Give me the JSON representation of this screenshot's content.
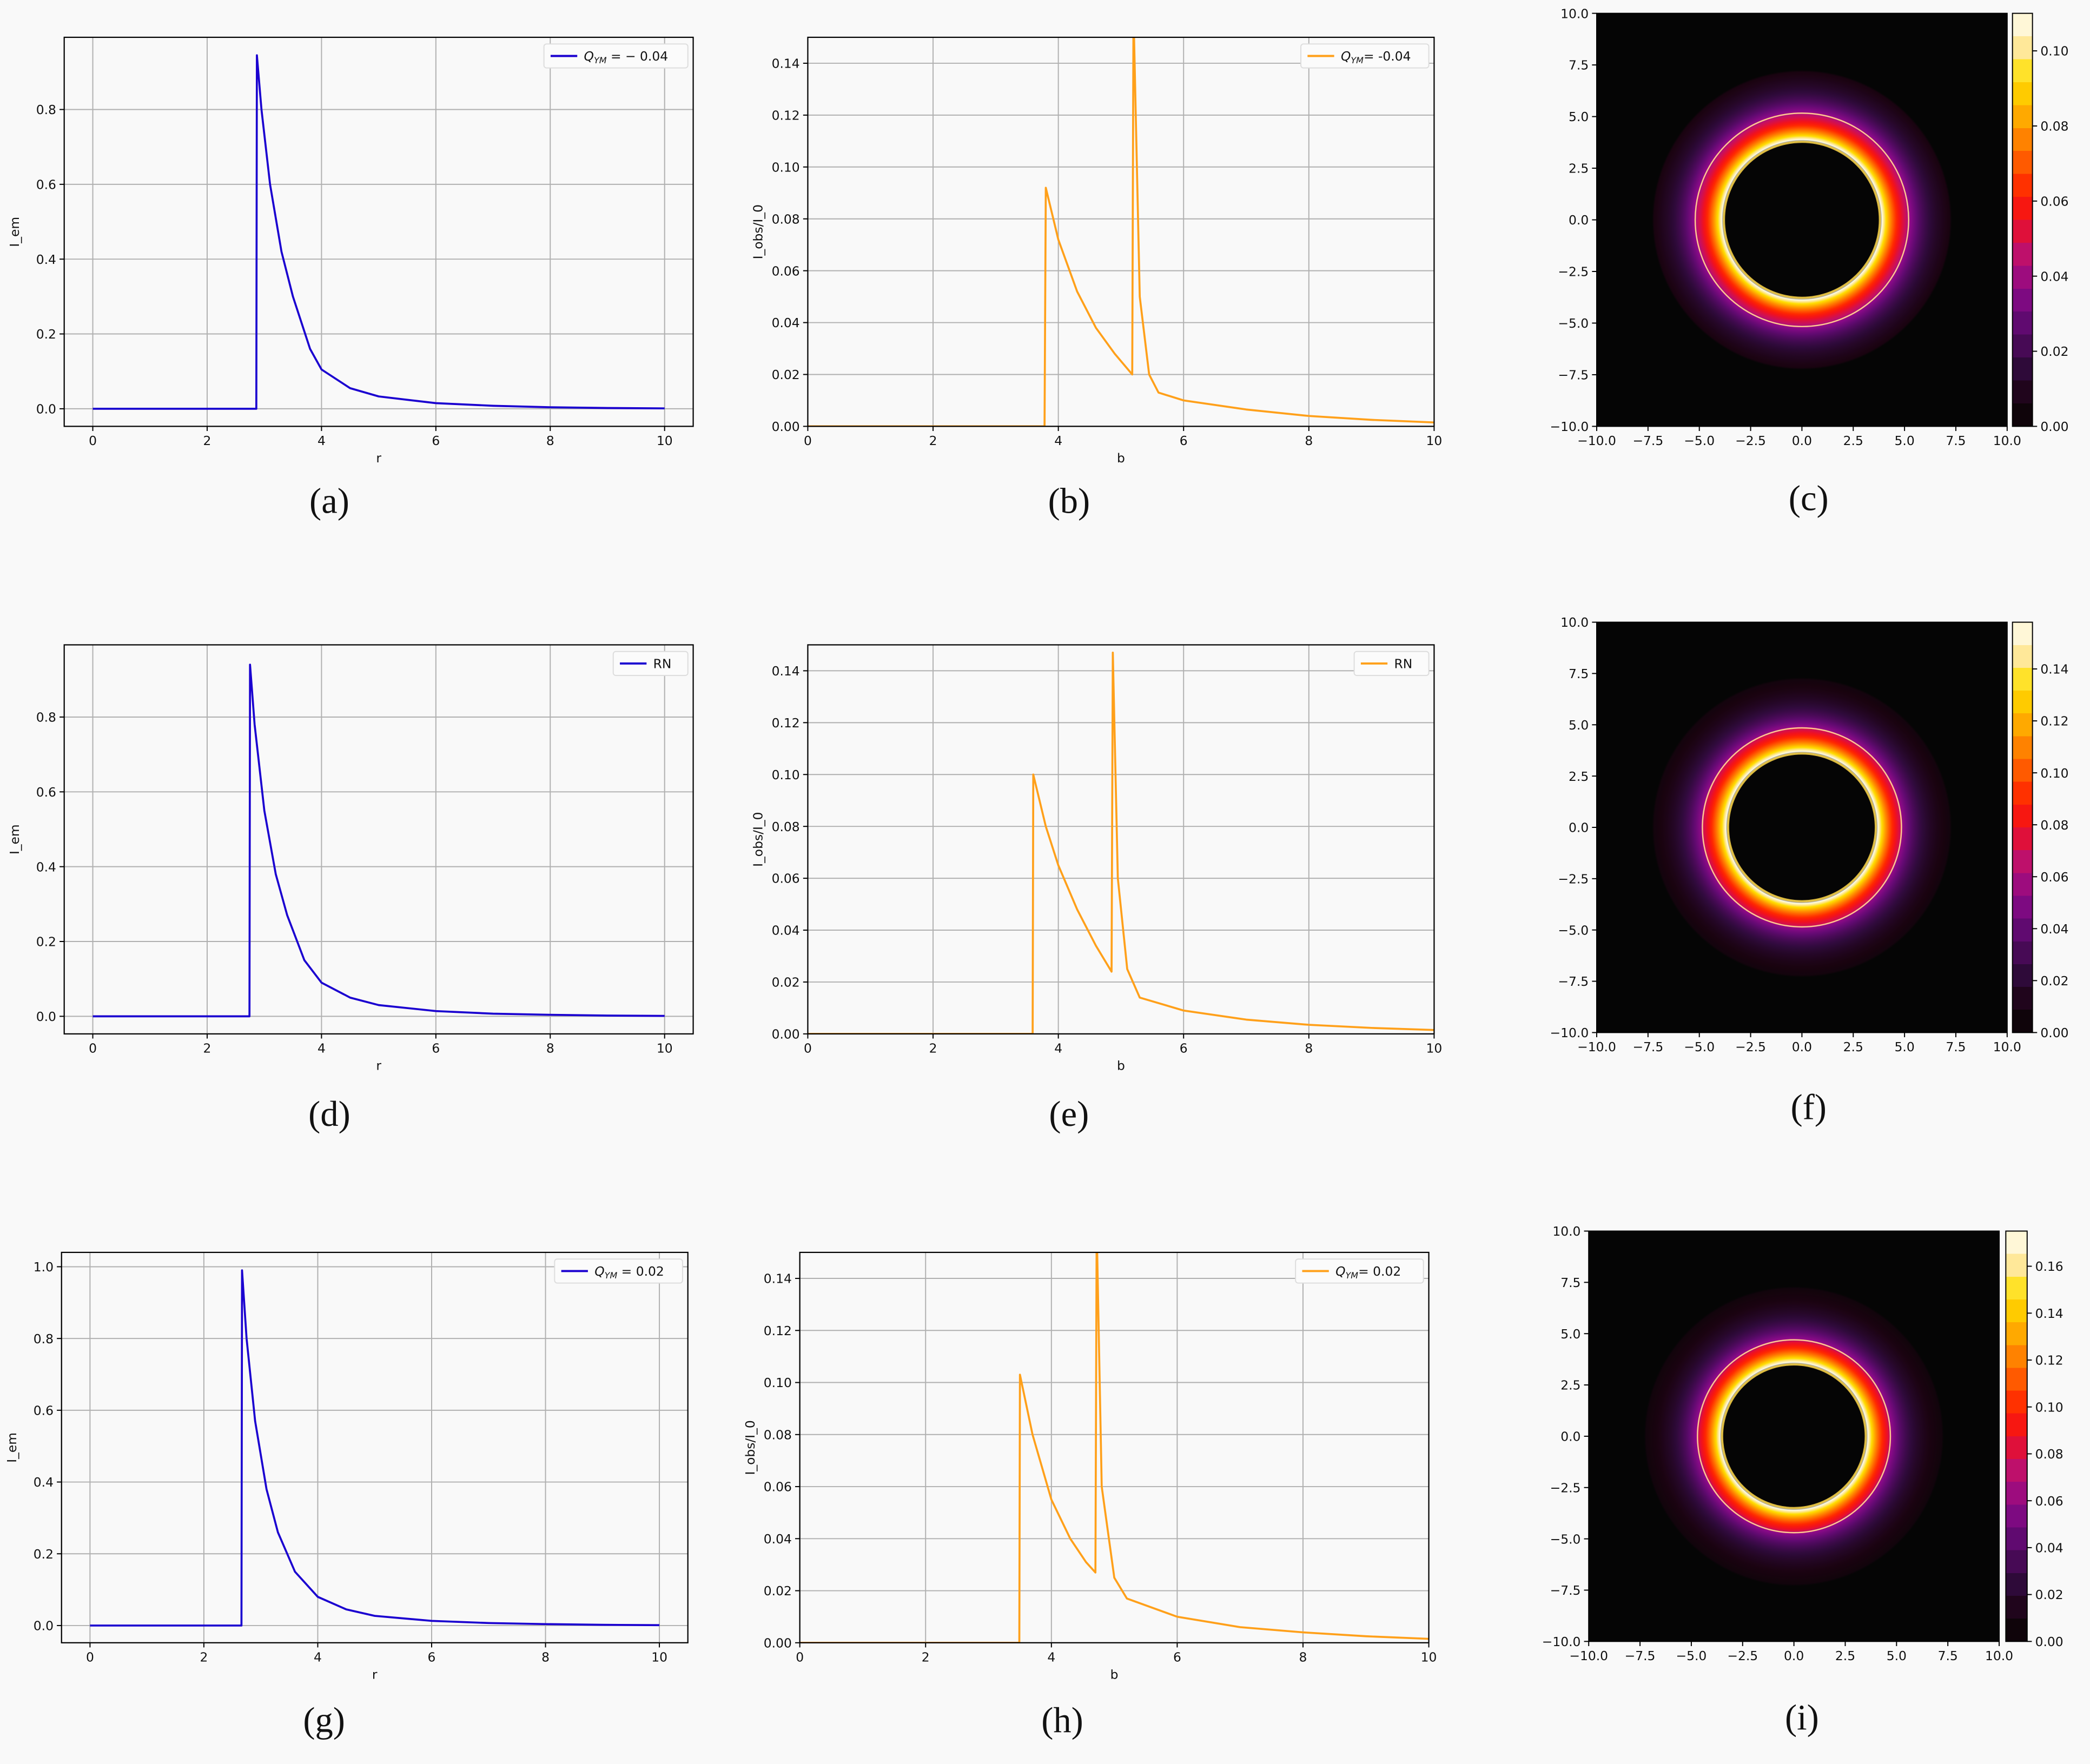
{
  "chart_data": [
    {
      "id": "a",
      "caption": "(a)",
      "type": "line",
      "xlabel": "r",
      "ylabel": "I_em",
      "xlim": [
        -0.5,
        10.5
      ],
      "ylim": [
        -0.047,
        0.993
      ],
      "xticks": [
        "0",
        "2",
        "4",
        "6",
        "8",
        "10"
      ],
      "xtick_values": [
        0,
        2,
        4,
        6,
        8,
        10
      ],
      "yticks": [
        "0.0",
        "0.2",
        "0.4",
        "0.6",
        "0.8"
      ],
      "ytick_values": [
        0,
        0.2,
        0.4,
        0.6,
        0.8
      ],
      "grid": true,
      "legend_placement": "top-right",
      "series": [
        {
          "name": "Q_YM = − 0.04",
          "legend": {
            "symbol": "Q",
            "sub": "YM",
            "text": " = − 0.04"
          },
          "color": "#1a00d0",
          "x": [
            0,
            2.86,
            2.87,
            2.95,
            3.1,
            3.3,
            3.5,
            3.8,
            4.0,
            4.5,
            5,
            6,
            7,
            8,
            9,
            10
          ],
          "y": [
            0,
            0,
            0.945,
            0.8,
            0.6,
            0.42,
            0.3,
            0.16,
            0.105,
            0.055,
            0.033,
            0.015,
            0.008,
            0.004,
            0.002,
            0.001
          ]
        }
      ]
    },
    {
      "id": "b",
      "caption": "(b)",
      "type": "line",
      "xlabel": "b",
      "ylabel": "I_obs/I_0",
      "xlim": [
        0,
        10
      ],
      "ylim": [
        0,
        0.15
      ],
      "xticks": [
        "0",
        "2",
        "4",
        "6",
        "8",
        "10"
      ],
      "xtick_values": [
        0,
        2,
        4,
        6,
        8,
        10
      ],
      "yticks": [
        "0.00",
        "0.02",
        "0.04",
        "0.06",
        "0.08",
        "0.10",
        "0.12",
        "0.14"
      ],
      "ytick_values": [
        0,
        0.02,
        0.04,
        0.06,
        0.08,
        0.1,
        0.12,
        0.14
      ],
      "grid": true,
      "legend_placement": "top-right",
      "series": [
        {
          "name": "Q_YM= -0.04",
          "legend": {
            "symbol": "Q",
            "sub": "YM",
            "text": "= -0.04"
          },
          "color": "#ffa01a",
          "x": [
            0,
            3.78,
            3.8,
            4.0,
            4.3,
            4.6,
            4.9,
            5.18,
            5.2,
            5.3,
            5.45,
            5.6,
            6,
            7,
            8,
            9,
            10
          ],
          "y": [
            0,
            0,
            0.092,
            0.072,
            0.052,
            0.038,
            0.028,
            0.02,
            0.16,
            0.05,
            0.02,
            0.013,
            0.01,
            0.0065,
            0.004,
            0.0025,
            0.0015
          ]
        }
      ]
    },
    {
      "id": "c",
      "caption": "(c)",
      "type": "heatmap",
      "xlim": [
        -10,
        10
      ],
      "ylim": [
        -10,
        10
      ],
      "xticks": [
        "−10.0",
        "−7.5",
        "−5.0",
        "−2.5",
        "0.0",
        "2.5",
        "5.0",
        "7.5",
        "10.0"
      ],
      "yticks": [
        "−10.0",
        "−7.5",
        "−5.0",
        "−2.5",
        "0.0",
        "2.5",
        "5.0",
        "7.5",
        "10.0"
      ],
      "tick_values": [
        -10,
        -7.5,
        -5,
        -2.5,
        0,
        2.5,
        5,
        7.5,
        10
      ],
      "shadow_radius": 3.8,
      "photon_ring_radius": 5.2,
      "colorbar_range": [
        0,
        0.11
      ],
      "colorbar_ticks": [
        "0.00",
        "0.02",
        "0.04",
        "0.06",
        "0.08",
        "0.10"
      ],
      "colorbar_tick_values": [
        0,
        0.02,
        0.04,
        0.06,
        0.08,
        0.1
      ],
      "colormap": "black-purple-red-yellow-white"
    },
    {
      "id": "d",
      "caption": "(d)",
      "type": "line",
      "xlabel": "r",
      "ylabel": "I_em",
      "xlim": [
        -0.5,
        10.5
      ],
      "ylim": [
        -0.047,
        0.993
      ],
      "xticks": [
        "0",
        "2",
        "4",
        "6",
        "8",
        "10"
      ],
      "xtick_values": [
        0,
        2,
        4,
        6,
        8,
        10
      ],
      "yticks": [
        "0.0",
        "0.2",
        "0.4",
        "0.6",
        "0.8"
      ],
      "ytick_values": [
        0,
        0.2,
        0.4,
        0.6,
        0.8
      ],
      "grid": true,
      "legend_placement": "top-right",
      "series": [
        {
          "name": "RN",
          "legend": {
            "symbol": "",
            "sub": "",
            "text": "RN"
          },
          "color": "#1a00d0",
          "x": [
            0,
            2.74,
            2.75,
            2.83,
            3.0,
            3.2,
            3.4,
            3.7,
            4.0,
            4.5,
            5,
            6,
            7,
            8,
            9,
            10
          ],
          "y": [
            0,
            0,
            0.94,
            0.78,
            0.55,
            0.38,
            0.27,
            0.15,
            0.09,
            0.05,
            0.03,
            0.014,
            0.007,
            0.004,
            0.002,
            0.001
          ]
        }
      ]
    },
    {
      "id": "e",
      "caption": "(e)",
      "type": "line",
      "xlabel": "b",
      "ylabel": "I_obs/I_0",
      "xlim": [
        0,
        10
      ],
      "ylim": [
        0,
        0.15
      ],
      "xticks": [
        "0",
        "2",
        "4",
        "6",
        "8",
        "10"
      ],
      "xtick_values": [
        0,
        2,
        4,
        6,
        8,
        10
      ],
      "yticks": [
        "0.00",
        "0.02",
        "0.04",
        "0.06",
        "0.08",
        "0.10",
        "0.12",
        "0.14"
      ],
      "ytick_values": [
        0,
        0.02,
        0.04,
        0.06,
        0.08,
        0.1,
        0.12,
        0.14
      ],
      "grid": true,
      "legend_placement": "top-right",
      "series": [
        {
          "name": "RN",
          "legend": {
            "symbol": "",
            "sub": "",
            "text": "RN"
          },
          "color": "#ffa01a",
          "x": [
            0,
            3.59,
            3.6,
            3.8,
            4.0,
            4.3,
            4.6,
            4.85,
            4.87,
            4.95,
            5.1,
            5.3,
            6,
            7,
            8,
            9,
            10
          ],
          "y": [
            0,
            0,
            0.1,
            0.08,
            0.065,
            0.048,
            0.034,
            0.024,
            0.147,
            0.06,
            0.025,
            0.014,
            0.009,
            0.0055,
            0.0035,
            0.0023,
            0.0015
          ]
        }
      ]
    },
    {
      "id": "f",
      "caption": "(f)",
      "type": "heatmap",
      "xlim": [
        -10,
        10
      ],
      "ylim": [
        -10,
        10
      ],
      "xticks": [
        "−10.0",
        "−7.5",
        "−5.0",
        "−2.5",
        "0.0",
        "2.5",
        "5.0",
        "7.5",
        "10.0"
      ],
      "yticks": [
        "−10.0",
        "−7.5",
        "−5.0",
        "−2.5",
        "0.0",
        "2.5",
        "5.0",
        "7.5",
        "10.0"
      ],
      "tick_values": [
        -10,
        -7.5,
        -5,
        -2.5,
        0,
        2.5,
        5,
        7.5,
        10
      ],
      "shadow_radius": 3.6,
      "photon_ring_radius": 4.85,
      "colorbar_range": [
        0,
        0.158
      ],
      "colorbar_ticks": [
        "0.00",
        "0.02",
        "0.04",
        "0.06",
        "0.08",
        "0.10",
        "0.12",
        "0.14"
      ],
      "colorbar_tick_values": [
        0,
        0.02,
        0.04,
        0.06,
        0.08,
        0.1,
        0.12,
        0.14
      ],
      "colormap": "black-purple-red-yellow-white"
    },
    {
      "id": "g",
      "caption": "(g)",
      "type": "line",
      "xlabel": "r",
      "ylabel": "I_em",
      "xlim": [
        -0.5,
        10.5
      ],
      "ylim": [
        -0.048,
        1.04
      ],
      "xticks": [
        "0",
        "2",
        "4",
        "6",
        "8",
        "10"
      ],
      "xtick_values": [
        0,
        2,
        4,
        6,
        8,
        10
      ],
      "yticks": [
        "0.0",
        "0.2",
        "0.4",
        "0.6",
        "0.8",
        "1.0"
      ],
      "ytick_values": [
        0,
        0.2,
        0.4,
        0.6,
        0.8,
        1.0
      ],
      "grid": true,
      "legend_placement": "top-right",
      "series": [
        {
          "name": "Q_YM = 0.02",
          "legend": {
            "symbol": "Q",
            "sub": "YM",
            "text": " = 0.02"
          },
          "color": "#1a00d0",
          "x": [
            0,
            2.66,
            2.67,
            2.75,
            2.9,
            3.1,
            3.3,
            3.6,
            4.0,
            4.5,
            5,
            6,
            7,
            8,
            9,
            10
          ],
          "y": [
            0,
            0,
            0.99,
            0.8,
            0.57,
            0.38,
            0.26,
            0.15,
            0.08,
            0.045,
            0.027,
            0.013,
            0.007,
            0.004,
            0.002,
            0.001
          ]
        }
      ]
    },
    {
      "id": "h",
      "caption": "(h)",
      "type": "line",
      "xlabel": "b",
      "ylabel": "I_obs/I_0",
      "xlim": [
        0,
        10
      ],
      "ylim": [
        0,
        0.15
      ],
      "xticks": [
        "0",
        "2",
        "4",
        "6",
        "8",
        "10"
      ],
      "xtick_values": [
        0,
        2,
        4,
        6,
        8,
        10
      ],
      "yticks": [
        "0.00",
        "0.02",
        "0.04",
        "0.06",
        "0.08",
        "0.10",
        "0.12",
        "0.14"
      ],
      "ytick_values": [
        0,
        0.02,
        0.04,
        0.06,
        0.08,
        0.1,
        0.12,
        0.14
      ],
      "grid": true,
      "legend_placement": "top-right",
      "series": [
        {
          "name": "Q_YM= 0.02",
          "legend": {
            "symbol": "Q",
            "sub": "YM",
            "text": "= 0.02"
          },
          "color": "#ffa01a",
          "x": [
            0,
            3.49,
            3.5,
            3.7,
            4.0,
            4.3,
            4.55,
            4.7,
            4.72,
            4.8,
            5.0,
            5.2,
            6,
            7,
            8,
            9,
            10
          ],
          "y": [
            0,
            0,
            0.103,
            0.08,
            0.055,
            0.04,
            0.031,
            0.027,
            0.16,
            0.06,
            0.025,
            0.017,
            0.01,
            0.006,
            0.004,
            0.0025,
            0.0015
          ]
        }
      ]
    },
    {
      "id": "i",
      "caption": "(i)",
      "type": "heatmap",
      "xlim": [
        -10,
        10
      ],
      "ylim": [
        -10,
        10
      ],
      "xticks": [
        "−10.0",
        "−7.5",
        "−5.0",
        "−2.5",
        "0.0",
        "2.5",
        "5.0",
        "7.5",
        "10.0"
      ],
      "yticks": [
        "−10.0",
        "−7.5",
        "−5.0",
        "−2.5",
        "0.0",
        "2.5",
        "5.0",
        "7.5",
        "10.0"
      ],
      "tick_values": [
        -10,
        -7.5,
        -5,
        -2.5,
        0,
        2.5,
        5,
        7.5,
        10
      ],
      "shadow_radius": 3.5,
      "photon_ring_radius": 4.7,
      "colorbar_range": [
        0,
        0.175
      ],
      "colorbar_ticks": [
        "0.00",
        "0.02",
        "0.04",
        "0.06",
        "0.08",
        "0.10",
        "0.12",
        "0.14",
        "0.16"
      ],
      "colorbar_tick_values": [
        0,
        0.02,
        0.04,
        0.06,
        0.08,
        0.1,
        0.12,
        0.14,
        0.16
      ],
      "colormap": "black-purple-red-yellow-white"
    }
  ]
}
